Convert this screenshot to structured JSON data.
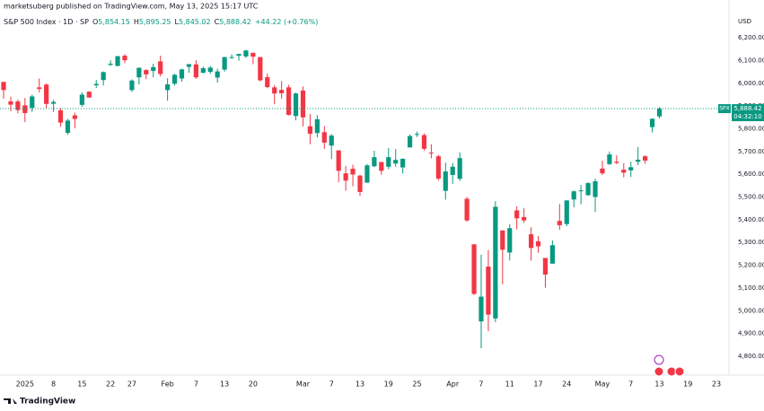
{
  "chart_data": {
    "type": "candlestick",
    "published": "marketsuberg published on TradingView.com, May 13, 2025 15:17 UTC",
    "legend": {
      "symbol": "S&P 500 Index · 1D · SP",
      "items": [
        {
          "key": "O",
          "value": "5,854.15"
        },
        {
          "key": "H",
          "value": "5,895.25"
        },
        {
          "key": "L",
          "value": "5,845.02"
        },
        {
          "key": "C",
          "value": "5,888.42"
        }
      ],
      "change": "+44.22 (+0.76%)"
    },
    "currency": "USD",
    "symbol_tag": "SPX",
    "last_price_label": "5,888.42",
    "countdown": "04:32:10",
    "brand": "TradingView",
    "up_color": "#089981",
    "down_color": "#f23645",
    "categories": [
      null,
      null,
      null,
      "2025",
      null,
      null,
      null,
      "8",
      null,
      null,
      null,
      "15",
      null,
      null,
      null,
      "22",
      null,
      null,
      "27",
      null,
      null,
      null,
      null,
      "Feb",
      null,
      null,
      null,
      "7",
      null,
      null,
      null,
      "13",
      null,
      null,
      null,
      "20",
      null,
      null,
      null,
      null,
      null,
      null,
      "Mar",
      null,
      null,
      null,
      "7",
      null,
      null,
      null,
      "13",
      null,
      null,
      null,
      "19",
      null,
      null,
      null,
      "25",
      null,
      null,
      null,
      null,
      "Apr",
      null,
      null,
      null,
      "7",
      null,
      null,
      null,
      "11",
      null,
      null,
      null,
      "17",
      null,
      null,
      null,
      "24",
      null,
      null,
      null,
      null,
      "May",
      null,
      null,
      null,
      "7",
      null,
      null,
      null,
      "13",
      null,
      null,
      null,
      "19",
      null,
      null,
      null,
      "23"
    ],
    "open": [
      6006,
      5920,
      5920,
      5903,
      5892,
      5982,
      5994,
      5910,
      5881,
      5782,
      5859,
      5905,
      5963,
      5991,
      6014,
      6081,
      6076,
      6121,
      5970,
      6026,
      6058,
      6054,
      6096,
      5970,
      5998,
      6021,
      6072,
      6083,
      6046,
      6050,
      6025,
      6060,
      6115,
      6121,
      6118,
      6134,
      6115,
      6027,
      5982,
      5971,
      5982,
      5856,
      5968,
      5811,
      5781,
      5785,
      5726,
      5705,
      5604,
      5624,
      5594,
      5563,
      5635,
      5654,
      5633,
      5647,
      5630,
      5718,
      5775,
      5772,
      5695,
      5679,
      5527,
      5597,
      5580,
      5492,
      5292,
      4953,
      5194,
      4966,
      5353,
      5256,
      5441,
      5412,
      5336,
      5305,
      5232,
      5207,
      5395,
      5381,
      5489,
      5529,
      5508,
      5500,
      5625,
      5645,
      5655,
      5620,
      5617,
      5655,
      5679,
      5807,
      5854.15,
      null,
      null,
      null,
      null,
      null,
      null,
      null,
      null
    ],
    "high": [
      6006,
      5941,
      5929,
      5935,
      5950,
      6021,
      6000,
      5927,
      5891,
      5844,
      5871,
      5960,
      5965,
      6014,
      6052,
      6100,
      6120,
      6128,
      6017,
      6069,
      6062,
      6086,
      6121,
      6022,
      6042,
      6063,
      6084,
      6101,
      6073,
      6076,
      6064,
      6116,
      6127,
      6129,
      6147,
      6134,
      6115,
      6043,
      5992,
      6010,
      5993,
      5959,
      5986,
      5865,
      5860,
      5812,
      5777,
      5705,
      5636,
      5642,
      5597,
      5645,
      5703,
      5654,
      5715,
      5711,
      5670,
      5775,
      5787,
      5780,
      5732,
      5685,
      5651,
      5650,
      5696,
      5500,
      5292,
      5246,
      5267,
      5482,
      5353,
      5381,
      5459,
      5450,
      5367,
      5328,
      5232,
      5309,
      5469,
      5485,
      5528,
      5553,
      5565,
      5581,
      5659,
      5700,
      5683,
      5649,
      5655,
      5720,
      5683,
      5845,
      5895.25,
      null,
      null,
      null,
      null,
      null,
      null,
      null,
      null
    ],
    "low": [
      5932,
      5877,
      5868,
      5829,
      5874,
      5960,
      5890,
      5874,
      5809,
      5773,
      5802,
      5896,
      5937,
      5979,
      5990,
      6076,
      6075,
      6088,
      5962,
      5995,
      6018,
      6026,
      6030,
      5923,
      5990,
      6007,
      6046,
      6019,
      6044,
      6042,
      6003,
      6051,
      6107,
      6099,
      6111,
      6084,
      6008,
      5978,
      5908,
      5932,
      5858,
      5837,
      5810,
      5732,
      5762,
      5711,
      5667,
      5565,
      5528,
      5547,
      5505,
      5563,
      5631,
      5598,
      5622,
      5633,
      5603,
      5718,
      5764,
      5703,
      5670,
      5572,
      5488,
      5558,
      5571,
      5391,
      5069,
      4835,
      4910,
      4950,
      5116,
      5221,
      5358,
      5386,
      5220,
      5255,
      5101,
      5207,
      5356,
      5371,
      5455,
      5468,
      5505,
      5434,
      5597,
      5640,
      5644,
      5586,
      5588,
      5640,
      5646,
      5784,
      5845.02,
      null,
      null,
      null,
      null,
      null,
      null,
      null,
      null
    ],
    "close": [
      5970,
      5906,
      5882,
      5869,
      5942,
      5975,
      5909,
      5918,
      5827,
      5836,
      5843,
      5950,
      5937,
      5997,
      6049,
      6086,
      6119,
      6101,
      6012,
      6068,
      6039,
      6071,
      6041,
      5995,
      6037,
      6061,
      6084,
      6026,
      6066,
      6069,
      6052,
      6115,
      6115,
      6129,
      6144,
      6117,
      6013,
      5983,
      5955,
      5956,
      5861,
      5955,
      5850,
      5778,
      5842,
      5739,
      5770,
      5615,
      5572,
      5599,
      5522,
      5639,
      5675,
      5615,
      5675,
      5663,
      5668,
      5768,
      5777,
      5712,
      5693,
      5581,
      5612,
      5633,
      5671,
      5397,
      5074,
      5062,
      4983,
      5457,
      5268,
      5363,
      5406,
      5397,
      5276,
      5283,
      5159,
      5288,
      5376,
      5485,
      5525,
      5529,
      5561,
      5569,
      5604,
      5687,
      5650,
      5607,
      5631,
      5664,
      5660,
      5844,
      5888.42,
      null,
      null,
      null,
      null,
      null,
      null,
      null,
      null
    ],
    "ylim": [
      4717,
      6366
    ],
    "yticks": [
      {
        "value": 4800,
        "label": "4,800.00"
      },
      {
        "value": 4900,
        "label": "4,900.00"
      },
      {
        "value": 5000,
        "label": "5,000.00"
      },
      {
        "value": 5100,
        "label": "5,100.00"
      },
      {
        "value": 5200,
        "label": "5,200.00"
      },
      {
        "value": 5300,
        "label": "5,300.00"
      },
      {
        "value": 5400,
        "label": "5,400.00"
      },
      {
        "value": 5500,
        "label": "5,500.00"
      },
      {
        "value": 5600,
        "label": "5,600.00"
      },
      {
        "value": 5700,
        "label": "5,700.00"
      },
      {
        "value": 5800,
        "label": "5,800.00"
      },
      {
        "value": 5900,
        "label": "5,900.00"
      },
      {
        "value": 6000,
        "label": "6,000.00"
      },
      {
        "value": 6100,
        "label": "6,100.00"
      },
      {
        "value": 6200,
        "label": "6,200.00"
      }
    ],
    "grid": false
  }
}
